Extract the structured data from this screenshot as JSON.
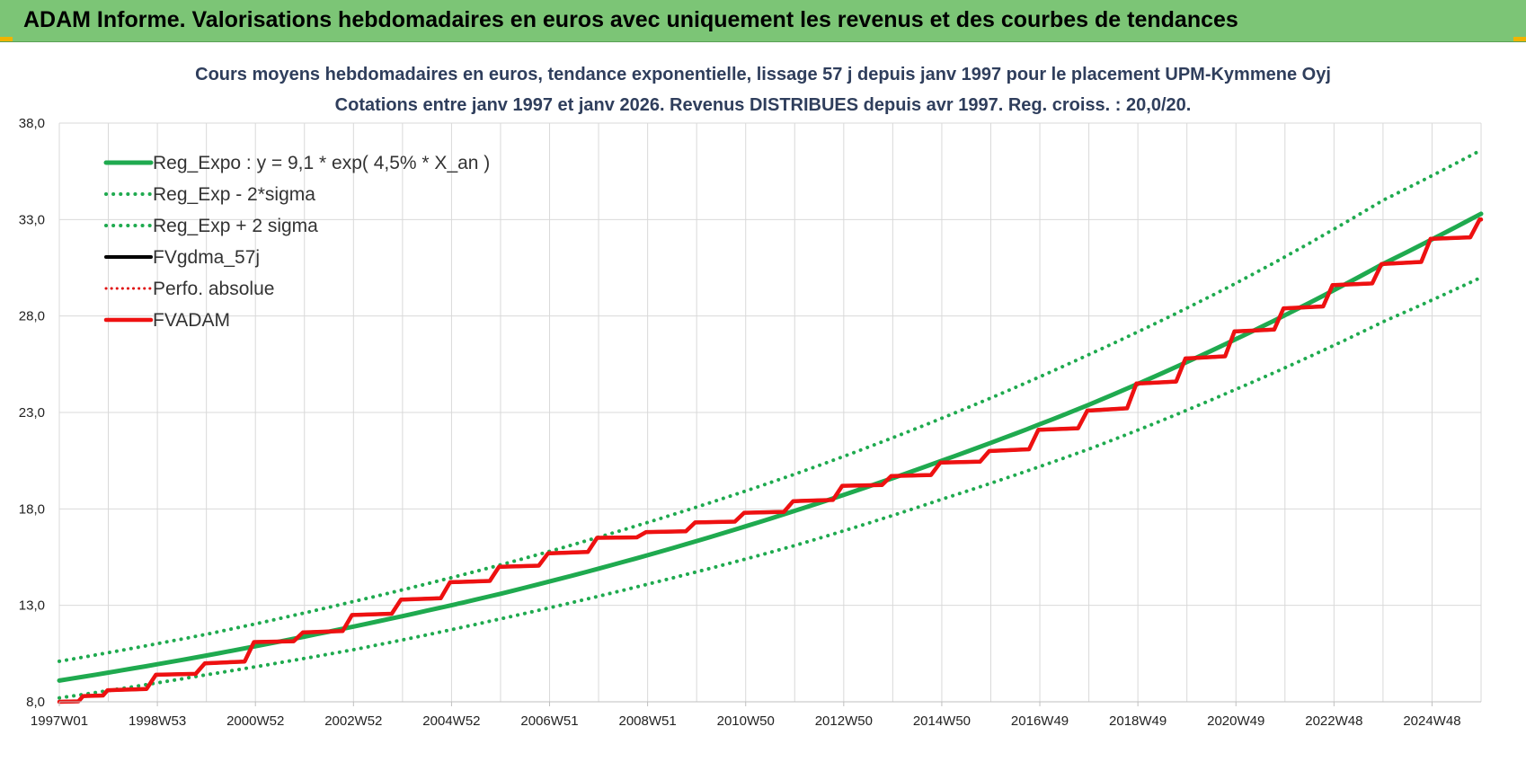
{
  "header": {
    "title": "ADAM Informe. Valorisations hebdomadaires en euros avec uniquement les revenus et des courbes de tendances"
  },
  "chart_data": {
    "type": "line",
    "title_lines": [
      "Cours moyens hebdomadaires en euros, tendance exponentielle, lissage 57 j depuis janv 1997 pour le placement UPM-Kymmene Oyj",
      "Cotations entre janv 1997 et janv 2026. Revenus DISTRIBUES depuis avr 1997. Reg. croiss. : 20,0/20."
    ],
    "xlabel": "",
    "ylabel": "",
    "ylim": [
      8.0,
      38.0
    ],
    "yticks": [
      "8,0",
      "13,0",
      "18,0",
      "23,0",
      "28,0",
      "33,0",
      "38,0"
    ],
    "xlim": [
      1997.0,
      2026.0
    ],
    "xticks": [
      {
        "label": "1997W01",
        "x": 1997.0
      },
      {
        "label": "1998W53",
        "x": 1999.0
      },
      {
        "label": "2000W52",
        "x": 2001.0
      },
      {
        "label": "2002W52",
        "x": 2003.0
      },
      {
        "label": "2004W52",
        "x": 2005.0
      },
      {
        "label": "2006W51",
        "x": 2007.0
      },
      {
        "label": "2008W51",
        "x": 2009.0
      },
      {
        "label": "2010W50",
        "x": 2011.0
      },
      {
        "label": "2012W50",
        "x": 2013.0
      },
      {
        "label": "2014W50",
        "x": 2015.0
      },
      {
        "label": "2016W49",
        "x": 2017.0
      },
      {
        "label": "2018W49",
        "x": 2019.0
      },
      {
        "label": "2020W49",
        "x": 2021.0
      },
      {
        "label": "2022W48",
        "x": 2023.0
      },
      {
        "label": "2024W48",
        "x": 2025.0
      }
    ],
    "grid": true,
    "legend_position": "top-left",
    "series": [
      {
        "name": "Reg_Expo : y = 9,1 * exp( 4,5% *  X_an )",
        "color": "#1faa4f",
        "style": "solid",
        "x": [
          1997,
          2000,
          2003,
          2006,
          2009,
          2012,
          2015,
          2018,
          2021,
          2024,
          2026
        ],
        "y": [
          9.1,
          10.4,
          11.9,
          13.6,
          15.6,
          17.9,
          20.5,
          23.4,
          26.8,
          30.7,
          33.3
        ]
      },
      {
        "name": "Reg_Exp - 2*sigma",
        "color": "#1faa4f",
        "style": "dotted",
        "x": [
          1997,
          2000,
          2003,
          2006,
          2009,
          2012,
          2015,
          2018,
          2021,
          2024,
          2026
        ],
        "y": [
          8.2,
          9.4,
          10.7,
          12.3,
          14.1,
          16.1,
          18.5,
          21.1,
          24.2,
          27.7,
          30.0
        ]
      },
      {
        "name": "Reg_Exp + 2 sigma",
        "color": "#1faa4f",
        "style": "dotted",
        "x": [
          1997,
          2000,
          2003,
          2006,
          2009,
          2012,
          2015,
          2018,
          2021,
          2024,
          2026
        ],
        "y": [
          10.1,
          11.5,
          13.2,
          15.1,
          17.3,
          19.8,
          22.7,
          26.0,
          29.7,
          34.0,
          36.6
        ]
      },
      {
        "name": "FVgdma_57j",
        "color": "#000000",
        "style": "solid",
        "x": [
          1997,
          1997.5,
          1998,
          1999,
          2000,
          2001,
          2002,
          2003,
          2004,
          2005,
          2006,
          2007,
          2008,
          2009,
          2010,
          2011,
          2012,
          2013,
          2014,
          2015,
          2016,
          2017,
          2018,
          2019,
          2020,
          2021,
          2022,
          2023,
          2024,
          2025,
          2026
        ],
        "y": [
          8.0,
          8.3,
          8.6,
          9.4,
          10.0,
          11.1,
          11.6,
          12.5,
          13.3,
          14.2,
          15.0,
          15.7,
          16.5,
          16.8,
          17.3,
          17.8,
          18.4,
          19.2,
          19.7,
          20.4,
          21.0,
          22.1,
          23.1,
          24.5,
          25.8,
          27.2,
          28.4,
          29.6,
          30.7,
          32.0,
          33.0
        ]
      },
      {
        "name": "Perfo. absolue",
        "color": "#e01010",
        "style": "dotted",
        "x": [],
        "y": []
      },
      {
        "name": "FVADAM",
        "color": "#ee1111",
        "style": "solid",
        "x": [
          1997,
          1997.5,
          1998,
          1999,
          2000,
          2001,
          2002,
          2003,
          2004,
          2005,
          2006,
          2007,
          2008,
          2009,
          2010,
          2011,
          2012,
          2013,
          2014,
          2015,
          2016,
          2017,
          2018,
          2019,
          2020,
          2021,
          2022,
          2023,
          2024,
          2025,
          2026
        ],
        "y": [
          8.0,
          8.3,
          8.6,
          9.4,
          10.0,
          11.1,
          11.6,
          12.5,
          13.3,
          14.2,
          15.0,
          15.7,
          16.5,
          16.8,
          17.3,
          17.8,
          18.4,
          19.2,
          19.7,
          20.4,
          21.0,
          22.1,
          23.1,
          24.5,
          25.8,
          27.2,
          28.4,
          29.6,
          30.7,
          32.0,
          33.0
        ]
      }
    ]
  }
}
